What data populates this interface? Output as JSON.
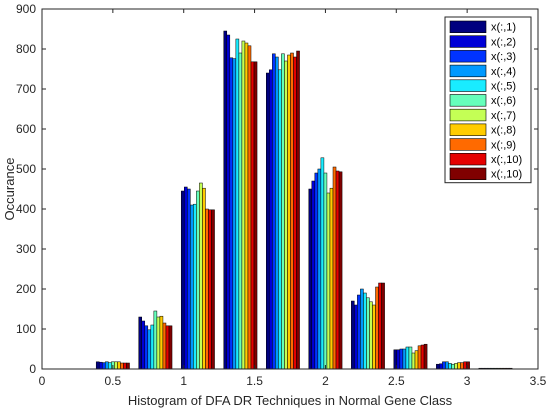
{
  "chart_data": {
    "type": "bar",
    "title": "",
    "xlabel": "Histogram of DFA DR Techniques in Normal Gene Class",
    "ylabel": "Occurance",
    "xlim": [
      0,
      3.5
    ],
    "ylim": [
      0,
      900
    ],
    "x_ticks": [
      "0",
      "0.5",
      "1",
      "1.5",
      "2",
      "2.5",
      "3",
      "3.5"
    ],
    "x_tick_values": [
      0,
      0.5,
      1,
      1.5,
      2,
      2.5,
      3,
      3.5
    ],
    "y_ticks": [
      "0",
      "100",
      "200",
      "300",
      "400",
      "500",
      "600",
      "700",
      "800",
      "900"
    ],
    "y_tick_values": [
      0,
      100,
      200,
      300,
      400,
      500,
      600,
      700,
      800,
      900
    ],
    "grid": false,
    "legend_position": "top-right",
    "bin_centers": [
      0.5,
      0.8,
      1.1,
      1.4,
      1.7,
      2.0,
      2.3,
      2.6,
      2.9,
      3.2
    ],
    "series": [
      {
        "name": "x(:,1)",
        "color": "#00007f",
        "values": [
          18,
          130,
          445,
          845,
          740,
          450,
          170,
          48,
          12,
          2
        ]
      },
      {
        "name": "x(:,2)",
        "color": "#0000d6",
        "values": [
          17,
          120,
          455,
          835,
          748,
          470,
          160,
          48,
          13,
          2
        ]
      },
      {
        "name": "x(:,3)",
        "color": "#0033ff",
        "values": [
          16,
          108,
          450,
          778,
          788,
          490,
          185,
          50,
          18,
          2
        ]
      },
      {
        "name": "x(:,4)",
        "color": "#0099ff",
        "values": [
          18,
          98,
          410,
          776,
          780,
          500,
          200,
          50,
          18,
          2
        ]
      },
      {
        "name": "x(:,5)",
        "color": "#19ecff",
        "values": [
          16,
          110,
          412,
          825,
          748,
          528,
          190,
          55,
          14,
          2
        ]
      },
      {
        "name": "x(:,6)",
        "color": "#66ffbb",
        "values": [
          18,
          145,
          445,
          790,
          788,
          490,
          178,
          55,
          12,
          2
        ]
      },
      {
        "name": "x(:,7)",
        "color": "#c4ff55",
        "values": [
          18,
          130,
          465,
          820,
          770,
          440,
          168,
          40,
          14,
          2
        ]
      },
      {
        "name": "x(:,8)",
        "color": "#ffcc00",
        "values": [
          18,
          132,
          452,
          815,
          785,
          452,
          160,
          46,
          16,
          2
        ]
      },
      {
        "name": "x(:,9)",
        "color": "#ff6a00",
        "values": [
          15,
          115,
          400,
          808,
          790,
          505,
          205,
          58,
          16,
          2
        ]
      },
      {
        "name": "x(:,10)",
        "color": "#e50000",
        "values": [
          15,
          108,
          398,
          768,
          780,
          495,
          215,
          60,
          18,
          2
        ]
      },
      {
        "name": "x(:,10)",
        "color": "#800000",
        "values": [
          15,
          108,
          398,
          768,
          795,
          493,
          215,
          62,
          18,
          2
        ]
      }
    ]
  }
}
